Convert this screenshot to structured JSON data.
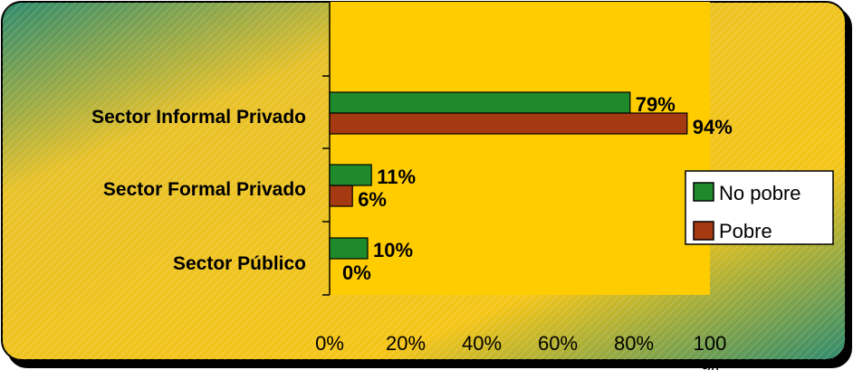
{
  "chart_data": {
    "type": "bar",
    "orientation": "horizontal",
    "title": "",
    "xlabel": "",
    "ylabel": "",
    "categories": [
      "Sector Informal Privado",
      "Sector Formal Privado",
      "Sector Público"
    ],
    "series": [
      {
        "name": "No pobre",
        "values": [
          79,
          11,
          10
        ],
        "labels": [
          "79%",
          "11%",
          "10%"
        ],
        "color": "#1e8a2c"
      },
      {
        "name": "Pobre",
        "values": [
          94,
          6,
          0
        ],
        "labels": [
          "94%",
          "6%",
          "0%"
        ],
        "color": "#a53a12"
      }
    ],
    "xlim": [
      0,
      100
    ],
    "x_ticks": [
      {
        "value": 0,
        "label": "0%"
      },
      {
        "value": 20,
        "label": "20%"
      },
      {
        "value": 40,
        "label": "40%"
      },
      {
        "value": 60,
        "label": "60%"
      },
      {
        "value": 80,
        "label": "80%"
      },
      {
        "value": 100,
        "label": "100"
      }
    ],
    "x_tick_overflow": "%",
    "legend_position": "right",
    "plot_area_color": "#ffcc00",
    "background_colors": [
      "#ffcc00",
      "#2e8b6e"
    ],
    "grid": false
  }
}
